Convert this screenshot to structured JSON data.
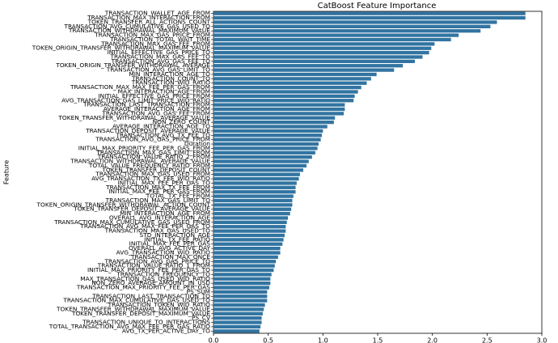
{
  "chart_data": {
    "type": "barh",
    "title": "CatBoost Feature Importance",
    "y_label": "Feature",
    "color": "#3274a1",
    "categories": [
      "TRANSACTION_WALLET_AGE_FROM",
      "TRANSACTION_MAX_INTERACTION_FROM",
      "TOKEN_TRANSFER_ALL_ACTIONS_COUNT",
      "TRANSACTION_AVG_CUMULATIVE_GAS_USED_TO",
      "TRANSACTION_WITHDRAWAL_MAXIMUM_VALUE",
      "TRANSACTION_MAX_GAS_PRICE_FROM",
      "TRANSACTION_TOTAL_WAIT_TIME",
      "TRANSACTION_MAX_GAS_FEE_FROM",
      "TOKEN_ORIGIN_TRANSFER_WITHDRAWAL_MAXIMUM_VALUE",
      "INITIAL_EFFECTIVE_GAS_PRICE_TO",
      "TRANSACTION_MAX_GAS_FEE_TO",
      "TRANSACTION_AVG_GAS_FEE_TO",
      "TOKEN_ORIGIN_TRANSFER_WITHDRAWAL_AVERAGE",
      "TRANSACTION_AVG_GAS_LIMIT_TO",
      "MIN_INTERACTION_AGE_TO",
      "TRANSACTION_COUNT_TO",
      "TRANSACTION_WID_RATIO",
      "TRANSACTION_MAX_MAX_FEE_PER_GAS_FROM",
      "MAX_INTERACTION_AGE_FROM",
      "INITIAL_EFFECTIVE_GAS_PRICE_FROM",
      "AVG_TRANSACTION_GAS_LIMIT_PRICE_WID_RATIO",
      "TRANSACTION_LAST_TRANSACTION_FROM",
      "AVERAGE_INTERACTION_AGE_FROM",
      "TRANSACTION_AVG_GAS_FEE_FROM",
      "TOKEN_TRANSFER_WITHDRAWAL_AVERAGE_VALUE",
      "NON_ZERO_COUNT",
      "AVERAGE_INTERACTION_AGE_TO",
      "TRANSACTION_DEPOSIT_AVERAGE_VALUE",
      "TRANSACTION_AVG_TX_FEE_TO",
      "TRANSACTION_AVG_GAS_PRICE_FROM",
      "Duration",
      "INITIAL_MAX_PRIORITY_FEE_PER_GAS_FROM",
      "TRANSACTION_MAX_GAS_LIMIT_FROM",
      "TRANSACTION_VALUE_RATIO_2_FROM",
      "TRANSACTION_WITHDRAWAL_AVERAGE_VALUE",
      "TOTAL_VALUE_FREQUENCY_RATIO_FROM",
      "TOKEN_TRANSFER_DEPOSIT_COUNT",
      "TRANSACTION_MAX_GAS_USED_FROM",
      "AVG_TRANSACTION_TX_FEE_WID_RATIO",
      "INITIAL_MAX_FEE_PER_GAS_TO",
      "TRANSACTION_MAX_TX_FEE_FROM",
      "INITIAL_MAX_FEE_PER_GAS_FROM",
      "TOTAL_TX_FEE_FROM",
      "TRANSACTION_MAX_GAS_LIMIT_TO",
      "TOKEN_ORIGIN_TRANSFER_WITHDRAWAL_ACTION_COUNT",
      "TOKEN_TRANSFER_DEPOSIT_AVERAGE_VALUE",
      "MIN_INTERACTION_AGE_FROM",
      "OVERALL_AVG_INTERACTION_AGE",
      "TRANSACTION_MAX_CUMULATIVE_GAS_USED_FROM",
      "TRANSACTION_AVG_MAX_FEE_PER_GAS_TO",
      "TRANSACTION_MAX_GAS_USED_TO",
      "STD_INTERACTION_AGE",
      "INITIAL_TX_FEE_RATIO",
      "INITIAL_MAX_FEE_PER_GAS",
      "OVERALL_AVG_ACTIVE_DAY",
      "AVG_TRANSACTION_WID_RATIO",
      "TRANSACTION_MAX_ONCE",
      "TRANSACTION_AVG_GAS_PRICE_TO",
      "TRANSACTION_VALUE_RATIO_1_FROM",
      "INITIAL_MAX_PRIORITY_FEE_PER_GAS_TO",
      "TRANSACTION_FREQUENCY_TO",
      "MAX_TRANSACTION_GAS_USED_WID_RATIO",
      "NON_ZERO_AVERAGE_AMOUNT_IN_USD",
      "TRANSACTION_MAX_PRIORITY_FEE_PER_GAS",
      "PS_SUM",
      "TRANSACTION_LAST_TRANSACTION_TO",
      "TRANSACTION_MAX_CUMULATIVE_GAS_USED_TO",
      "TRANSACTION_TOKEN_WID_RATIO",
      "TOKEN_TRANSFER_WITHDRAWAL_MAXIMUM_VALUE",
      "TOKEN_TRANSFER_DEPOSIT_MAXIMUM_VALUE",
      "PS_CV",
      "TRANSACTION_UNIQUE_TO_INTERACTIONS",
      "TOTAL_TRANSACTION_AVG_MAX_FEE_PER_GAS_RATIO",
      "AVG_TX_PER_ACTIVE_DAY_TO"
    ],
    "values": [
      2.85,
      2.85,
      2.59,
      2.53,
      2.44,
      2.24,
      2.17,
      2.02,
      1.99,
      1.97,
      1.91,
      1.84,
      1.73,
      1.65,
      1.49,
      1.44,
      1.4,
      1.35,
      1.32,
      1.29,
      1.28,
      1.2,
      1.2,
      1.19,
      1.11,
      1.1,
      1.04,
      1.0,
      0.99,
      0.98,
      0.96,
      0.95,
      0.93,
      0.9,
      0.87,
      0.85,
      0.82,
      0.79,
      0.78,
      0.76,
      0.75,
      0.75,
      0.73,
      0.72,
      0.72,
      0.71,
      0.7,
      0.68,
      0.67,
      0.66,
      0.66,
      0.65,
      0.64,
      0.63,
      0.61,
      0.61,
      0.59,
      0.57,
      0.56,
      0.55,
      0.53,
      0.52,
      0.52,
      0.51,
      0.49,
      0.49,
      0.49,
      0.47,
      0.46,
      0.45,
      0.44,
      0.44,
      0.43,
      0.42
    ],
    "xlim": [
      0,
      3.0
    ],
    "xticks": [
      {
        "value": 0,
        "label": "0.0"
      },
      {
        "value": 0.5,
        "label": "0.5"
      },
      {
        "value": 1,
        "label": "1.0"
      },
      {
        "value": 1.5,
        "label": "1.5"
      },
      {
        "value": 2,
        "label": "2.0"
      },
      {
        "value": 2.5,
        "label": "2.5"
      },
      {
        "value": 3,
        "label": "3.0"
      }
    ]
  }
}
